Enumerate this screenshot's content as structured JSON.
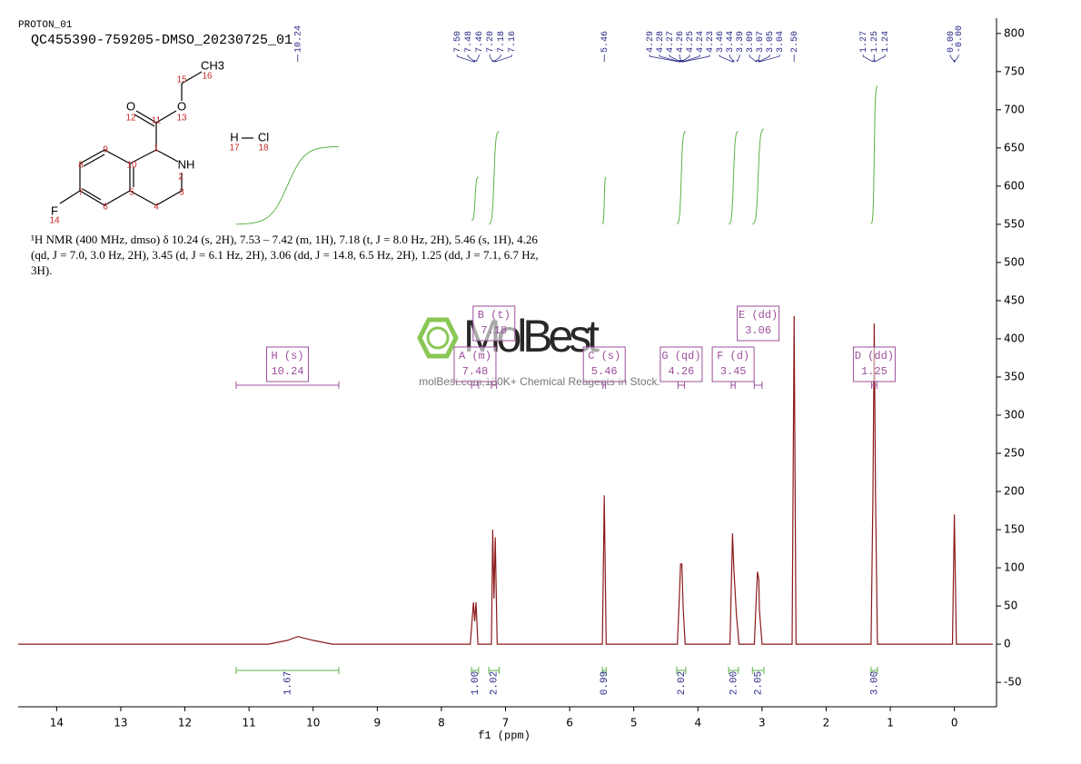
{
  "chart_data": {
    "type": "nmr",
    "title": "PROTON_01",
    "subtitle": "QC455390-759205-DMSO_20230725_01",
    "xlabel": "f1 (ppm)",
    "description": "¹H NMR (400 MHz, dmso) δ 10.24 (s, 2H), 7.53 – 7.42 (m, 1H), 7.18 (t, J = 8.0 Hz, 2H), 5.46 (s, 1H), 4.26 (qd, J = 7.0, 3.0 Hz, 2H), 3.45 (d, J = 6.1 Hz, 2H), 3.06 (dd, J = 14.8, 6.5 Hz, 2H), 1.25 (dd, J = 7.1, 6.7 Hz, 3H).",
    "watermark": {
      "logo": "MolBest",
      "tagline": "molBest.com,180K+ Chemical Reagents In Stock."
    },
    "molecule": {
      "atoms": [
        "O",
        "O",
        "NH",
        "F",
        "CH3",
        "H",
        "Cl"
      ],
      "numbers": [
        "1",
        "2",
        "3",
        "4",
        "5",
        "6",
        "7",
        "8",
        "9",
        "10",
        "11",
        "12",
        "13",
        "14",
        "15",
        "16",
        "17",
        "18"
      ]
    },
    "xlim": [
      14.6,
      -0.6
    ],
    "xticks": [
      14,
      13,
      12,
      11,
      10,
      9,
      8,
      7,
      6,
      5,
      4,
      3,
      2,
      1,
      0
    ],
    "ylim": [
      -82,
      820
    ],
    "yticks": [
      -50,
      0,
      50,
      100,
      150,
      200,
      250,
      300,
      350,
      400,
      450,
      500,
      550,
      600,
      650,
      700,
      750,
      800
    ],
    "x": [
      14.6,
      10.7,
      10.4,
      10.24,
      10.0,
      9.7,
      7.55,
      7.5,
      7.48,
      7.46,
      7.43,
      7.22,
      7.2,
      7.18,
      7.16,
      7.13,
      5.49,
      5.46,
      5.43,
      4.32,
      4.29,
      4.27,
      4.25,
      4.23,
      4.2,
      3.5,
      3.46,
      3.44,
      3.4,
      3.36,
      3.12,
      3.09,
      3.07,
      3.05,
      3.04,
      3.0,
      2.53,
      2.5,
      2.47,
      1.3,
      1.27,
      1.25,
      1.23,
      1.2,
      0.03,
      0.0,
      -0.03,
      -0.6
    ],
    "series": [
      {
        "name": "spectrum",
        "color": "#8b1a1a",
        "values": [
          0,
          0,
          5,
          10,
          5,
          0,
          0,
          55,
          30,
          55,
          0,
          0,
          150,
          60,
          140,
          0,
          0,
          195,
          0,
          0,
          60,
          105,
          105,
          50,
          0,
          0,
          145,
          100,
          40,
          0,
          0,
          60,
          95,
          85,
          45,
          0,
          0,
          430,
          0,
          0,
          200,
          420,
          195,
          0,
          0,
          170,
          0,
          0
        ]
      }
    ],
    "peak_groups": [
      [
        {
          "value": 10.24,
          "label": "10.24"
        }
      ],
      [
        {
          "value": 7.5,
          "label": "7.50"
        },
        {
          "value": 7.48,
          "label": "7.48"
        },
        {
          "value": 7.46,
          "label": "7.46"
        },
        {
          "value": 7.2,
          "label": "7.20"
        },
        {
          "value": 7.18,
          "label": "7.18"
        },
        {
          "value": 7.16,
          "label": "7.16"
        }
      ],
      [
        {
          "value": 5.46,
          "label": "5.46"
        }
      ],
      [
        {
          "value": 4.29,
          "label": "4.29"
        },
        {
          "value": 4.28,
          "label": "4.28"
        },
        {
          "value": 4.27,
          "label": "4.27"
        },
        {
          "value": 4.26,
          "label": "4.26"
        },
        {
          "value": 4.25,
          "label": "4.25"
        },
        {
          "value": 4.24,
          "label": "4.24"
        },
        {
          "value": 4.23,
          "label": "4.23"
        },
        {
          "value": 3.46,
          "label": "3.46"
        },
        {
          "value": 3.44,
          "label": "3.44"
        },
        {
          "value": 3.39,
          "label": "3.39"
        },
        {
          "value": 3.09,
          "label": "3.09"
        },
        {
          "value": 3.07,
          "label": "3.07"
        },
        {
          "value": 3.05,
          "label": "3.05"
        },
        {
          "value": 3.04,
          "label": "3.04"
        }
      ],
      [
        {
          "value": 2.5,
          "label": "2.50"
        }
      ],
      [
        {
          "value": 1.27,
          "label": "1.27"
        },
        {
          "value": 1.25,
          "label": "1.25"
        },
        {
          "value": 1.24,
          "label": "1.24"
        }
      ],
      [
        {
          "value": 0,
          "label": "0.00"
        },
        {
          "value": 0,
          "label": "-0.00"
        }
      ]
    ],
    "multiplets": [
      {
        "name": "H (s)",
        "shift": "10.24",
        "range": [
          11.2,
          9.6
        ]
      },
      {
        "name": "A (m)",
        "shift": "7.48",
        "range": [
          7.53,
          7.42
        ]
      },
      {
        "name": "B (t)",
        "shift": "7.18",
        "range": [
          7.22,
          7.14
        ]
      },
      {
        "name": "C (s)",
        "shift": "5.46",
        "range": [
          5.48,
          5.44
        ]
      },
      {
        "name": "G (qd)",
        "shift": "4.26",
        "range": [
          4.31,
          4.21
        ]
      },
      {
        "name": "F (d)",
        "shift": "3.45",
        "range": [
          3.48,
          3.42
        ]
      },
      {
        "name": "E (dd)",
        "shift": "3.06",
        "range": [
          3.12,
          3.0
        ]
      },
      {
        "name": "D (dd)",
        "shift": "1.25",
        "range": [
          1.29,
          1.21
        ]
      }
    ],
    "integrals": [
      {
        "label": "1.67",
        "range": [
          11.2,
          9.6
        ],
        "curve": [
          550,
          652
        ]
      },
      {
        "label": "1.00",
        "range": [
          7.53,
          7.42
        ],
        "curve": [
          555,
          612
        ]
      },
      {
        "label": "2.02",
        "range": [
          7.26,
          7.1
        ],
        "curve": [
          550,
          672
        ]
      },
      {
        "label": "0.99",
        "range": [
          5.49,
          5.43
        ],
        "curve": [
          550,
          612
        ]
      },
      {
        "label": "2.02",
        "range": [
          4.33,
          4.19
        ],
        "curve": [
          550,
          672
        ]
      },
      {
        "label": "2.00",
        "range": [
          3.52,
          3.37
        ],
        "curve": [
          550,
          672
        ]
      },
      {
        "label": "2.05",
        "range": [
          3.15,
          2.97
        ],
        "curve": [
          550,
          675
        ]
      },
      {
        "label": "3.00",
        "range": [
          1.3,
          1.2
        ],
        "curve": [
          550,
          732
        ]
      }
    ]
  }
}
